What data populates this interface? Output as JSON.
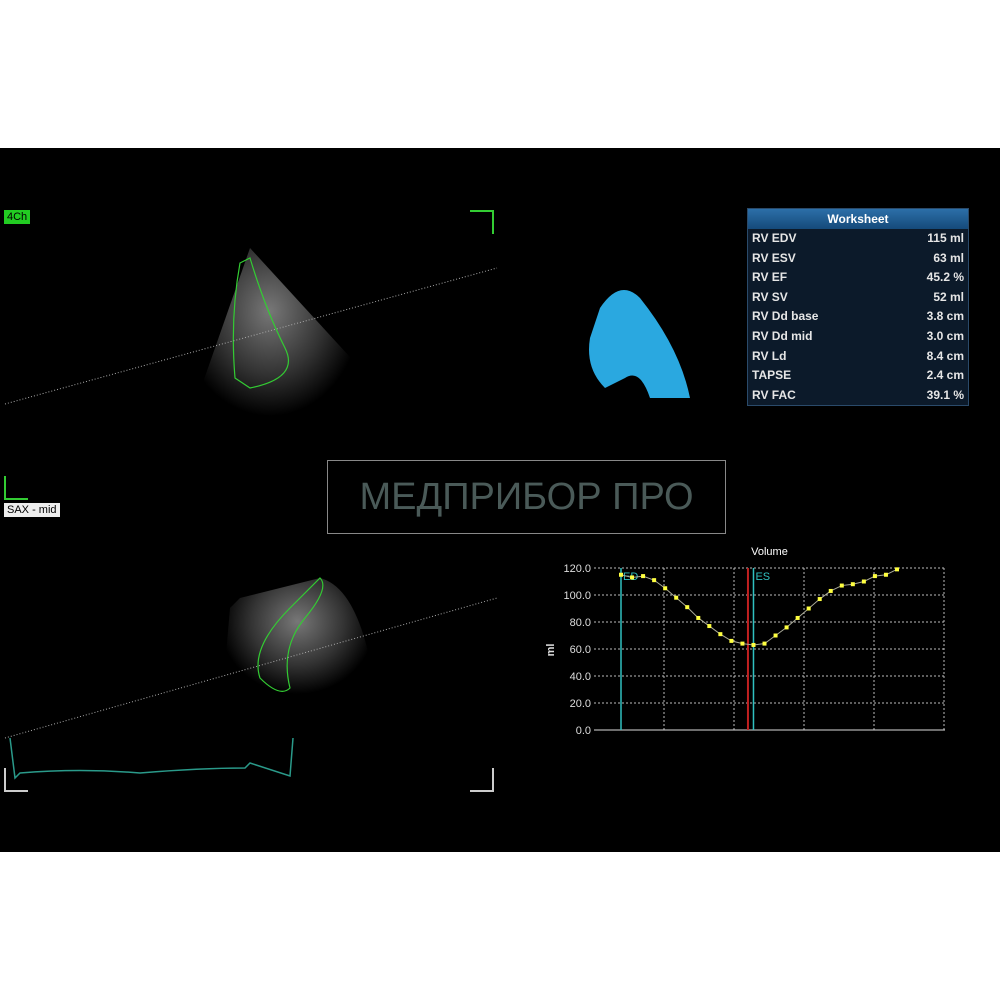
{
  "views": {
    "top_label": "4Ch",
    "bottom_label": "SAX - mid"
  },
  "worksheet": {
    "title": "Worksheet",
    "rows": [
      {
        "name": "RV EDV",
        "value": "115 ml"
      },
      {
        "name": "RV ESV",
        "value": "63 ml"
      },
      {
        "name": "RV EF",
        "value": "45.2 %"
      },
      {
        "name": "RV SV",
        "value": "52 ml"
      },
      {
        "name": "RV Dd base",
        "value": "3.8 cm"
      },
      {
        "name": "RV Dd mid",
        "value": "3.0 cm"
      },
      {
        "name": "RV Ld",
        "value": "8.4 cm"
      },
      {
        "name": "TAPSE",
        "value": "2.4 cm"
      },
      {
        "name": "RV FAC",
        "value": "39.1 %"
      }
    ]
  },
  "watermark": "МЕДПРИБОР ПРО",
  "colors": {
    "model": "#2aa8e0",
    "curve": "#ffff40",
    "ed_es_marker": "#30c0c0",
    "current_marker": "#c02020",
    "contour": "#3c3"
  },
  "chart_data": {
    "type": "line",
    "title": "Volume",
    "xlabel": "",
    "ylabel": "ml",
    "ylim": [
      0,
      120
    ],
    "yticks": [
      "0.0",
      "20.0",
      "40.0",
      "60.0",
      "80.0",
      "100.0",
      "120.0"
    ],
    "grid": true,
    "values": [
      115,
      113,
      114,
      111,
      105,
      98,
      91,
      83,
      77,
      71,
      66,
      64,
      63,
      64,
      70,
      76,
      83,
      90,
      97,
      103,
      107,
      108,
      110,
      114,
      115,
      119
    ],
    "markers": [
      {
        "label": "ED",
        "index": 0
      },
      {
        "label": "ES",
        "index": 12
      }
    ],
    "current_index": 11.5
  }
}
